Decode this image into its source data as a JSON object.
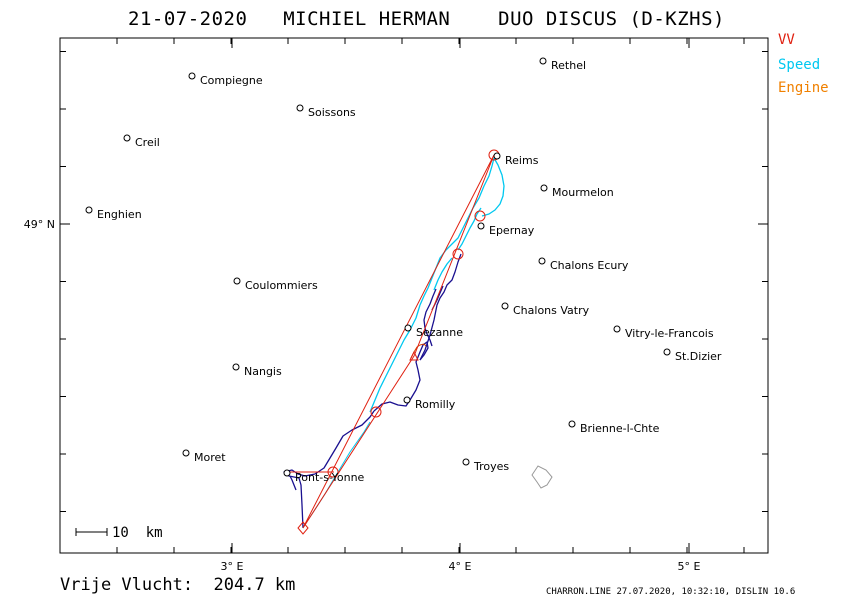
{
  "header": {
    "title": "21-07-2020   MICHIEL HERMAN    DUO DISCUS (D-KZHS)"
  },
  "legend": [
    {
      "label": "VV",
      "color": "#e02010"
    },
    {
      "label": "Speed",
      "color": "#00c8f0"
    },
    {
      "label": "Engine",
      "color": "#f08000"
    }
  ],
  "colors": {
    "task_line": "#e02010",
    "track_low": "#1a1090",
    "track_fast": "#00c8f0",
    "frame": "#000000"
  },
  "axes": {
    "x_ticks": [
      "3° E",
      "4° E",
      "5° E"
    ],
    "y_ticks": [
      "49° N"
    ]
  },
  "cities": [
    {
      "name": "Rethel"
    },
    {
      "name": "Compiegne"
    },
    {
      "name": "Soissons"
    },
    {
      "name": "Creil"
    },
    {
      "name": "Reims"
    },
    {
      "name": "Mourmelon"
    },
    {
      "name": "Enghien"
    },
    {
      "name": "Epernay"
    },
    {
      "name": "Chalons Ecury"
    },
    {
      "name": "Coulommiers"
    },
    {
      "name": "Chalons Vatry"
    },
    {
      "name": "Sezanne"
    },
    {
      "name": "Vitry-le-Francois"
    },
    {
      "name": "St.Dizier"
    },
    {
      "name": "Nangis"
    },
    {
      "name": "Romilly"
    },
    {
      "name": "Brienne-l-Chte"
    },
    {
      "name": "Moret"
    },
    {
      "name": "Troyes"
    },
    {
      "name": "Pont-s-Yonne"
    }
  ],
  "scale": {
    "label": "10  km"
  },
  "footer": {
    "distance": "Vrije Vlucht:  204.7 km",
    "credit": "CHARRON.LINE 27.07.2020, 10:32:10, DISLIN 10.6"
  }
}
